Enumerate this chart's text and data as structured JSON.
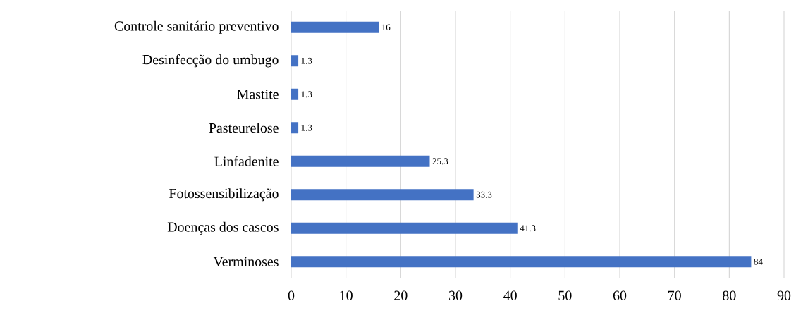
{
  "chart_data": {
    "type": "bar",
    "orientation": "horizontal",
    "categories": [
      "Controle sanitário preventivo",
      "Desinfecção do umbugo",
      "Mastite",
      "Pasteurelose",
      "Linfadenite",
      "Fotossensibilização",
      "Doenças dos cascos",
      "Verminoses"
    ],
    "values": [
      16,
      1.3,
      1.3,
      1.3,
      25.3,
      33.3,
      41.3,
      84
    ],
    "color": "#4472c4",
    "xlim": [
      0,
      90
    ],
    "xticks": [
      0,
      10,
      20,
      30,
      40,
      50,
      60,
      70,
      80,
      90
    ],
    "grid": "x",
    "data_labels": true
  }
}
